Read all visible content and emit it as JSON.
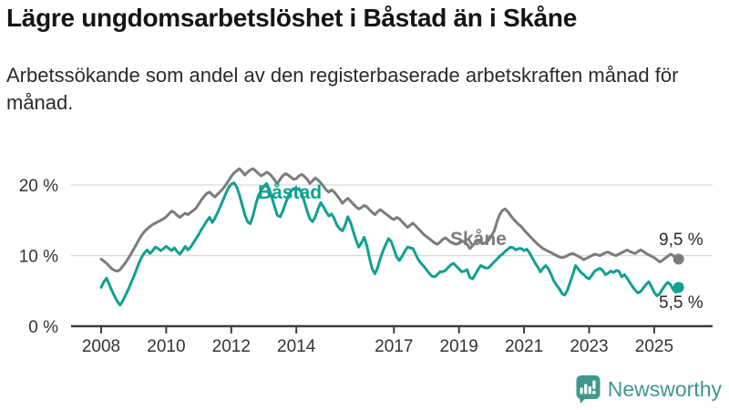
{
  "chart_data": {
    "type": "line",
    "title": "Lägre ungdomsarbetslöshet i Båstad än i Skåne",
    "subtitle": "Arbetssökande som andel av den registerbaserade arbetskraften månad för månad.",
    "unit": "%",
    "frequency": "monthly",
    "start": "2008-01",
    "end": "2025-10",
    "grid": "horizontal-only",
    "legend_position": "inline-labels",
    "ylim": [
      0,
      24
    ],
    "y_ticks": [
      {
        "value": 0,
        "label": "0 %"
      },
      {
        "value": 10,
        "label": "10 %"
      },
      {
        "value": 20,
        "label": "20 %"
      }
    ],
    "x_ticks": [
      {
        "year": 2008,
        "label": "2008"
      },
      {
        "year": 2010,
        "label": "2010"
      },
      {
        "year": 2012,
        "label": "2012"
      },
      {
        "year": 2014,
        "label": "2014"
      },
      {
        "year": 2017,
        "label": "2017"
      },
      {
        "year": 2019,
        "label": "2019"
      },
      {
        "year": 2021,
        "label": "2021"
      },
      {
        "year": 2023,
        "label": "2023"
      },
      {
        "year": 2025,
        "label": "2025"
      }
    ],
    "series": [
      {
        "name": "Skåne",
        "color": "#7c7c7c",
        "end_label": "9,5 %",
        "end_value": 9.5,
        "values": [
          9.5,
          9.2,
          8.9,
          8.5,
          8.1,
          7.9,
          7.8,
          8.0,
          8.5,
          9.0,
          9.6,
          10.2,
          10.9,
          11.6,
          12.3,
          12.9,
          13.4,
          13.8,
          14.1,
          14.4,
          14.6,
          14.8,
          15.0,
          15.2,
          15.5,
          15.9,
          16.3,
          16.1,
          15.7,
          15.4,
          15.7,
          16.0,
          15.8,
          16.1,
          16.4,
          16.7,
          17.3,
          17.9,
          18.4,
          18.8,
          19.0,
          18.6,
          18.3,
          18.7,
          19.1,
          19.5,
          20.0,
          20.6,
          21.2,
          21.7,
          22.0,
          22.3,
          21.9,
          21.4,
          21.8,
          22.1,
          22.3,
          22.0,
          21.6,
          21.3,
          21.5,
          21.8,
          21.6,
          21.2,
          20.7,
          20.2,
          20.8,
          21.3,
          21.6,
          21.4,
          21.1,
          20.8,
          20.9,
          21.3,
          21.5,
          21.2,
          20.8,
          20.2,
          20.6,
          21.0,
          20.7,
          20.3,
          19.8,
          19.3,
          19.0,
          19.3,
          19.0,
          18.5,
          18.0,
          17.4,
          17.8,
          18.1,
          17.7,
          17.3,
          16.9,
          16.6,
          16.8,
          17.1,
          16.9,
          16.5,
          16.1,
          15.8,
          16.2,
          16.5,
          16.2,
          15.9,
          15.6,
          15.3,
          15.1,
          15.4,
          15.2,
          14.8,
          14.4,
          14.0,
          14.3,
          14.6,
          14.2,
          13.8,
          13.4,
          13.0,
          12.7,
          12.4,
          12.1,
          11.8,
          11.6,
          11.9,
          12.3,
          12.5,
          12.2,
          11.9,
          11.7,
          11.6,
          11.8,
          12.1,
          11.9,
          11.6,
          11.0,
          11.4,
          11.8,
          12.1,
          11.9,
          11.7,
          11.9,
          12.2,
          12.8,
          13.5,
          14.8,
          15.8,
          16.4,
          16.6,
          16.2,
          15.7,
          15.2,
          14.8,
          14.4,
          14.1,
          13.6,
          13.2,
          12.8,
          12.4,
          12.0,
          11.6,
          11.3,
          11.0,
          10.8,
          10.6,
          10.4,
          10.2,
          10.0,
          9.8,
          9.7,
          9.8,
          10.0,
          10.2,
          10.3,
          10.1,
          9.9,
          9.7,
          9.4,
          9.6,
          9.8,
          10.0,
          10.2,
          10.1,
          10.0,
          10.2,
          10.4,
          10.5,
          10.3,
          10.1,
          10.0,
          10.2,
          10.4,
          10.6,
          10.8,
          10.6,
          10.4,
          10.3,
          10.6,
          10.8,
          10.6,
          10.3,
          10.1,
          9.9,
          9.7,
          9.4,
          9.1,
          9.3,
          9.6,
          9.9,
          10.2,
          10.0,
          9.6,
          9.5
        ]
      },
      {
        "name": "Båstad",
        "color": "#11a092",
        "end_label": "5,5 %",
        "end_value": 5.5,
        "values": [
          5.5,
          6.3,
          6.8,
          5.9,
          5.0,
          4.2,
          3.5,
          3.0,
          3.6,
          4.4,
          5.2,
          6.1,
          7.0,
          8.0,
          9.0,
          9.8,
          10.4,
          10.8,
          10.3,
          10.7,
          11.2,
          11.0,
          10.7,
          11.0,
          11.3,
          11.0,
          10.7,
          11.1,
          10.6,
          10.2,
          10.7,
          11.3,
          10.8,
          11.2,
          11.8,
          12.4,
          13.0,
          13.7,
          14.3,
          14.9,
          15.4,
          14.7,
          15.3,
          16.1,
          17.0,
          17.9,
          18.8,
          19.6,
          20.1,
          20.3,
          19.7,
          18.6,
          17.2,
          15.8,
          14.8,
          14.5,
          15.6,
          17.2,
          18.5,
          19.2,
          19.8,
          20.2,
          19.4,
          18.2,
          16.9,
          15.7,
          15.5,
          16.3,
          17.4,
          18.4,
          19.1,
          19.5,
          19.3,
          19.5,
          18.8,
          17.6,
          16.3,
          15.2,
          14.8,
          15.5,
          16.6,
          17.5,
          16.9,
          16.2,
          15.6,
          15.9,
          15.2,
          14.3,
          13.8,
          13.5,
          14.3,
          15.5,
          14.7,
          13.4,
          12.2,
          11.2,
          11.8,
          12.6,
          11.4,
          9.6,
          8.1,
          7.4,
          8.3,
          9.6,
          10.7,
          11.6,
          12.4,
          12.0,
          10.9,
          9.8,
          9.3,
          9.9,
          10.6,
          11.2,
          11.1,
          11.0,
          10.2,
          9.4,
          8.9,
          8.5,
          8.0,
          7.5,
          7.1,
          7.0,
          7.3,
          7.7,
          7.7,
          7.9,
          8.3,
          8.7,
          8.9,
          8.5,
          8.1,
          7.7,
          7.8,
          8.0,
          6.9,
          6.7,
          7.3,
          8.0,
          8.6,
          8.4,
          8.2,
          8.3,
          8.7,
          9.1,
          9.5,
          9.9,
          10.2,
          10.6,
          10.9,
          11.2,
          11.1,
          10.8,
          11.0,
          11.0,
          10.7,
          10.9,
          10.4,
          9.7,
          9.0,
          8.4,
          7.7,
          8.2,
          8.6,
          8.1,
          7.3,
          6.4,
          5.8,
          5.3,
          4.6,
          4.4,
          5.1,
          6.2,
          7.3,
          8.6,
          8.1,
          7.6,
          7.3,
          6.9,
          6.7,
          7.2,
          7.8,
          8.0,
          8.2,
          7.9,
          7.3,
          7.5,
          7.8,
          7.6,
          7.9,
          7.8,
          7.0,
          7.3,
          6.8,
          6.2,
          5.6,
          5.1,
          4.7,
          4.9,
          5.4,
          5.9,
          6.3,
          5.6,
          4.8,
          4.3,
          4.6,
          5.2,
          5.8,
          6.2,
          5.9,
          5.2,
          4.8,
          5.5
        ]
      }
    ],
    "axis_color": "#3d3d3d",
    "gridline_color": "#d9d9d9",
    "tick_label_color": "#333333"
  },
  "footer": {
    "brand": "Newsworthy",
    "brand_color": "#3d998c"
  }
}
